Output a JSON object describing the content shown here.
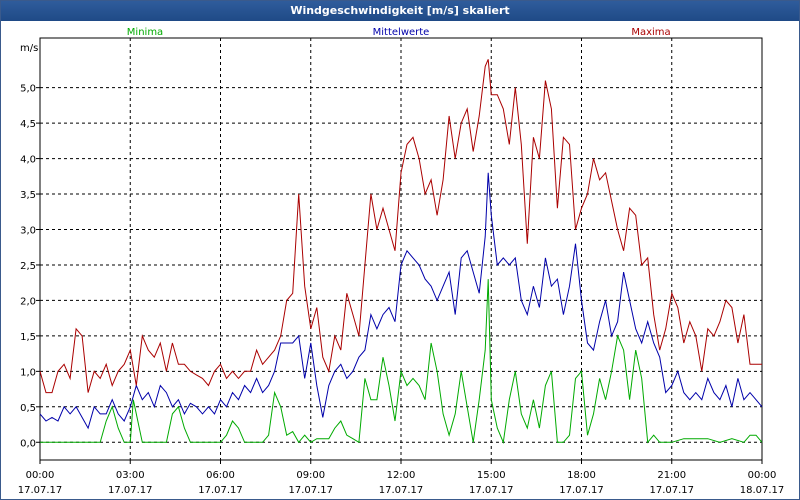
{
  "window": {
    "title": "Windgeschwindigkeit [m/s] skaliert"
  },
  "chart_data": {
    "type": "line",
    "title": "Windgeschwindigkeit [m/s] skaliert",
    "ylabel": "m/s",
    "ylim": [
      -0.25,
      5.7
    ],
    "xlim": [
      0,
      24
    ],
    "grid": true,
    "legend_position": "top",
    "y_ticks": [
      {
        "value": 0,
        "label": "0,0"
      },
      {
        "value": 0.5,
        "label": "0,5"
      },
      {
        "value": 1,
        "label": "1,0"
      },
      {
        "value": 1.5,
        "label": "1,5"
      },
      {
        "value": 2,
        "label": "2,0"
      },
      {
        "value": 2.5,
        "label": "2,5"
      },
      {
        "value": 3,
        "label": "3,0"
      },
      {
        "value": 3.5,
        "label": "3,5"
      },
      {
        "value": 4,
        "label": "4,0"
      },
      {
        "value": 4.5,
        "label": "4,5"
      },
      {
        "value": 5,
        "label": "5,0"
      }
    ],
    "x_ticks": [
      {
        "value": 0,
        "time": "00:00",
        "date": "17.07.17"
      },
      {
        "value": 3,
        "time": "03:00",
        "date": "17.07.17"
      },
      {
        "value": 6,
        "time": "06:00",
        "date": "17.07.17"
      },
      {
        "value": 9,
        "time": "09:00",
        "date": "17.07.17"
      },
      {
        "value": 12,
        "time": "12:00",
        "date": "17.07.17"
      },
      {
        "value": 15,
        "time": "15:00",
        "date": "17.07.17"
      },
      {
        "value": 18,
        "time": "18:00",
        "date": "17.07.17"
      },
      {
        "value": 21,
        "time": "21:00",
        "date": "17.07.17"
      },
      {
        "value": 24,
        "time": "00:00",
        "date": "18.07.17"
      }
    ],
    "series": [
      {
        "name": "Minima",
        "color": "#00aa00",
        "x": [
          0,
          1,
          2,
          2.2,
          2.4,
          2.6,
          2.8,
          3,
          3.1,
          3.2,
          3.4,
          3.6,
          3.8,
          4,
          4.2,
          4.4,
          4.6,
          4.8,
          5,
          5.4,
          5.8,
          6,
          6.2,
          6.4,
          6.6,
          6.8,
          7,
          7.2,
          7.4,
          7.6,
          7.8,
          8,
          8.2,
          8.4,
          8.6,
          8.8,
          9,
          9.2,
          9.4,
          9.6,
          9.8,
          10,
          10.2,
          10.4,
          10.6,
          10.8,
          11,
          11.2,
          11.4,
          11.6,
          11.8,
          12,
          12.2,
          12.4,
          12.6,
          12.8,
          13,
          13.2,
          13.4,
          13.6,
          13.8,
          14,
          14.2,
          14.4,
          14.6,
          14.8,
          14.9,
          15,
          15.2,
          15.4,
          15.6,
          15.8,
          16,
          16.2,
          16.4,
          16.6,
          16.8,
          17,
          17.2,
          17.4,
          17.6,
          17.8,
          18,
          18.2,
          18.4,
          18.6,
          18.8,
          19,
          19.2,
          19.4,
          19.6,
          19.8,
          20,
          20.2,
          20.4,
          20.6,
          21,
          21.4,
          21.8,
          22.2,
          22.6,
          23,
          23.4,
          23.6,
          23.8,
          24
        ],
        "values": [
          0,
          0,
          0,
          0.3,
          0.5,
          0.2,
          0,
          0,
          0.6,
          0.4,
          0,
          0,
          0,
          0,
          0,
          0.4,
          0.5,
          0.2,
          0,
          0,
          0,
          0,
          0.1,
          0.3,
          0.2,
          0,
          0,
          0,
          0,
          0.1,
          0.7,
          0.5,
          0.1,
          0.15,
          0,
          0.1,
          0,
          0.05,
          0.05,
          0.05,
          0.2,
          0.3,
          0.1,
          0.05,
          0,
          0.9,
          0.6,
          0.6,
          1.2,
          0.8,
          0.3,
          1.0,
          0.8,
          0.9,
          0.8,
          0.6,
          1.4,
          1.0,
          0.4,
          0.1,
          0.4,
          1.0,
          0.5,
          0,
          0.6,
          1.3,
          2.3,
          0.6,
          0.2,
          0,
          0.6,
          1.0,
          0.4,
          0.2,
          0.6,
          0.2,
          0.8,
          1.0,
          0,
          0,
          0.1,
          0.9,
          1.0,
          0.1,
          0.4,
          0.9,
          0.6,
          1.0,
          1.5,
          1.3,
          0.6,
          1.3,
          0.9,
          0,
          0.1,
          0,
          0,
          0.05,
          0.05,
          0.05,
          0,
          0.05,
          0,
          0.1,
          0.1,
          0
        ]
      },
      {
        "name": "Mittelwerte",
        "color": "#0000aa",
        "x": [
          0,
          0.2,
          0.4,
          0.6,
          0.8,
          1,
          1.2,
          1.4,
          1.6,
          1.8,
          2,
          2.2,
          2.4,
          2.6,
          2.8,
          3,
          3.2,
          3.4,
          3.6,
          3.8,
          4,
          4.2,
          4.4,
          4.6,
          4.8,
          5,
          5.2,
          5.4,
          5.6,
          5.8,
          6,
          6.2,
          6.4,
          6.6,
          6.8,
          7,
          7.2,
          7.4,
          7.6,
          7.8,
          8,
          8.2,
          8.4,
          8.6,
          8.8,
          9,
          9.2,
          9.4,
          9.6,
          9.8,
          10,
          10.2,
          10.4,
          10.6,
          10.8,
          11,
          11.2,
          11.4,
          11.6,
          11.8,
          12,
          12.2,
          12.4,
          12.6,
          12.8,
          13,
          13.2,
          13.4,
          13.6,
          13.8,
          14,
          14.2,
          14.4,
          14.6,
          14.8,
          14.9,
          15,
          15.2,
          15.4,
          15.6,
          15.8,
          16,
          16.2,
          16.4,
          16.6,
          16.8,
          17,
          17.2,
          17.4,
          17.6,
          17.8,
          18,
          18.2,
          18.4,
          18.6,
          18.8,
          19,
          19.2,
          19.4,
          19.6,
          19.8,
          20,
          20.2,
          20.4,
          20.6,
          20.8,
          21,
          21.2,
          21.4,
          21.6,
          21.8,
          22,
          22.2,
          22.4,
          22.6,
          22.8,
          23,
          23.2,
          23.4,
          23.6,
          23.8,
          24
        ],
        "values": [
          0.4,
          0.3,
          0.35,
          0.3,
          0.5,
          0.4,
          0.5,
          0.35,
          0.2,
          0.5,
          0.4,
          0.4,
          0.6,
          0.4,
          0.3,
          0.5,
          0.8,
          0.6,
          0.7,
          0.5,
          0.8,
          0.7,
          0.5,
          0.6,
          0.4,
          0.55,
          0.5,
          0.4,
          0.5,
          0.4,
          0.6,
          0.5,
          0.7,
          0.6,
          0.8,
          0.7,
          0.9,
          0.7,
          0.8,
          1.0,
          1.4,
          1.4,
          1.4,
          1.5,
          0.9,
          1.4,
          0.8,
          0.35,
          0.8,
          1.0,
          1.1,
          0.9,
          1.0,
          1.2,
          1.3,
          1.8,
          1.6,
          1.8,
          1.9,
          1.7,
          2.5,
          2.7,
          2.6,
          2.5,
          2.3,
          2.2,
          2.0,
          2.2,
          2.4,
          1.8,
          2.6,
          2.7,
          2.4,
          2.1,
          2.9,
          3.8,
          3.2,
          2.5,
          2.6,
          2.5,
          2.6,
          2.0,
          1.8,
          2.2,
          1.9,
          2.6,
          2.2,
          2.3,
          1.8,
          2.2,
          2.8,
          2.0,
          1.4,
          1.3,
          1.7,
          2.0,
          1.5,
          1.7,
          2.4,
          2.0,
          1.6,
          1.4,
          1.7,
          1.4,
          1.2,
          0.7,
          0.8,
          1.0,
          0.7,
          0.6,
          0.7,
          0.6,
          0.9,
          0.7,
          0.6,
          0.8,
          0.5,
          0.9,
          0.6,
          0.7,
          0.6,
          0.5
        ]
      },
      {
        "name": "Maxima",
        "color": "#aa0000",
        "x": [
          0,
          0.2,
          0.4,
          0.6,
          0.8,
          1,
          1.2,
          1.4,
          1.6,
          1.8,
          2,
          2.2,
          2.4,
          2.6,
          2.8,
          3,
          3.2,
          3.4,
          3.6,
          3.8,
          4,
          4.2,
          4.4,
          4.6,
          4.8,
          5,
          5.2,
          5.4,
          5.6,
          5.8,
          6,
          6.2,
          6.4,
          6.6,
          6.8,
          7,
          7.2,
          7.4,
          7.6,
          7.8,
          8,
          8.2,
          8.4,
          8.6,
          8.8,
          9,
          9.2,
          9.4,
          9.6,
          9.8,
          10,
          10.2,
          10.4,
          10.6,
          10.8,
          11,
          11.2,
          11.4,
          11.6,
          11.8,
          12,
          12.2,
          12.4,
          12.6,
          12.8,
          13,
          13.2,
          13.4,
          13.6,
          13.8,
          14,
          14.2,
          14.4,
          14.6,
          14.8,
          14.9,
          15,
          15.2,
          15.4,
          15.6,
          15.8,
          16,
          16.2,
          16.4,
          16.6,
          16.8,
          17,
          17.2,
          17.4,
          17.6,
          17.8,
          18,
          18.2,
          18.4,
          18.6,
          18.8,
          19,
          19.2,
          19.4,
          19.6,
          19.8,
          20,
          20.2,
          20.4,
          20.6,
          20.8,
          21,
          21.2,
          21.4,
          21.6,
          21.8,
          22,
          22.2,
          22.4,
          22.6,
          22.8,
          23,
          23.2,
          23.4,
          23.6,
          23.8,
          24
        ],
        "values": [
          1.0,
          0.7,
          0.7,
          1.0,
          1.1,
          0.9,
          1.6,
          1.5,
          0.7,
          1.0,
          0.9,
          1.1,
          0.8,
          1.0,
          1.1,
          1.3,
          0.8,
          1.5,
          1.3,
          1.2,
          1.4,
          1.0,
          1.4,
          1.1,
          1.1,
          1.0,
          0.95,
          0.9,
          0.8,
          1.0,
          1.1,
          0.9,
          1.0,
          0.9,
          1.0,
          1.0,
          1.3,
          1.1,
          1.2,
          1.3,
          1.5,
          2.0,
          2.1,
          3.5,
          2.2,
          1.6,
          1.9,
          1.2,
          1.0,
          1.5,
          1.3,
          2.1,
          1.8,
          1.5,
          2.5,
          3.5,
          3.0,
          3.3,
          3.0,
          2.7,
          3.8,
          4.2,
          4.3,
          4.0,
          3.5,
          3.7,
          3.2,
          3.7,
          4.6,
          4.0,
          4.5,
          4.7,
          4.1,
          4.6,
          5.3,
          5.4,
          4.9,
          4.9,
          4.7,
          4.2,
          5.0,
          4.2,
          2.8,
          4.3,
          4.0,
          5.1,
          4.7,
          3.3,
          4.3,
          4.2,
          3.0,
          3.3,
          3.5,
          4.0,
          3.7,
          3.8,
          3.4,
          3.0,
          2.7,
          3.3,
          3.2,
          2.5,
          2.6,
          1.8,
          1.3,
          1.6,
          2.1,
          1.9,
          1.4,
          1.7,
          1.5,
          1.0,
          1.6,
          1.5,
          1.7,
          2.0,
          1.9,
          1.4,
          1.8,
          1.1,
          1.1,
          1.1
        ]
      }
    ]
  }
}
